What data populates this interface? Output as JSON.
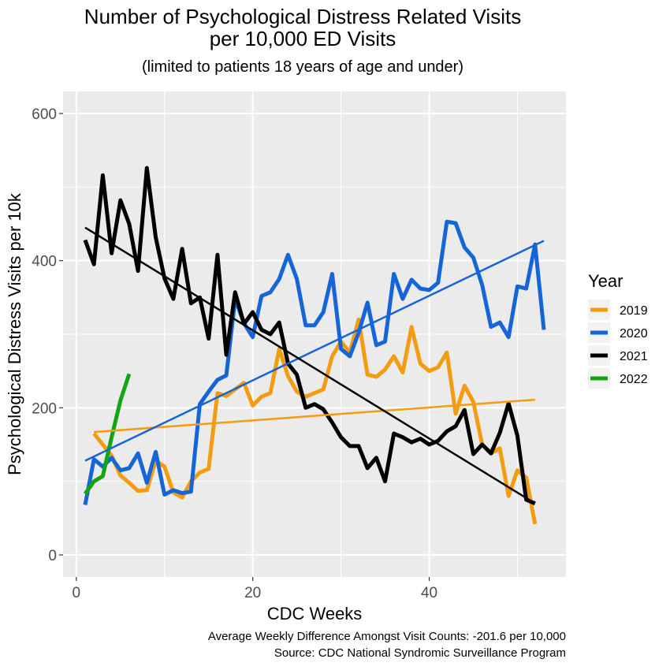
{
  "chart_data": {
    "type": "line",
    "title_line1": "Number of Psychological Distress Related Visits",
    "title_line2": "per 10,000 ED Visits",
    "subtitle": "(limited to patients 18 years of age and under)",
    "xlabel": "CDC Weeks",
    "ylabel": "Psychological Distress Visits per 10k",
    "xlim": [
      -1.5,
      55.5
    ],
    "ylim": [
      -30,
      630
    ],
    "x_ticks": [
      0,
      20,
      40
    ],
    "x_tick_labels": [
      "0",
      "20",
      "40"
    ],
    "y_ticks": [
      0,
      200,
      400,
      600
    ],
    "y_tick_labels": [
      "0",
      "200",
      "400",
      "600"
    ],
    "grid": true,
    "legend_position": "right",
    "legend_title": "Year",
    "caption_line1": "Average Weekly Difference Amongst Visit Counts: -201.6 per 10,000",
    "caption_line2": "Source: CDC National Syndromic Surveillance Program",
    "series": [
      {
        "name": "2019",
        "color": "#f39c12",
        "x": [
          2,
          3,
          4,
          5,
          6,
          7,
          8,
          9,
          10,
          11,
          12,
          13,
          14,
          15,
          16,
          17,
          18,
          19,
          20,
          21,
          22,
          23,
          24,
          25,
          26,
          27,
          28,
          29,
          30,
          31,
          32,
          33,
          34,
          35,
          36,
          37,
          38,
          39,
          40,
          41,
          42,
          43,
          44,
          45,
          46,
          47,
          48,
          49,
          50,
          51,
          52
        ],
        "y": [
          165,
          150,
          135,
          108,
          98,
          87,
          88,
          128,
          120,
          85,
          78,
          100,
          112,
          117,
          220,
          216,
          225,
          234,
          203,
          215,
          220,
          280,
          243,
          222,
          215,
          220,
          225,
          270,
          290,
          275,
          320,
          245,
          242,
          252,
          270,
          248,
          310,
          260,
          250,
          255,
          275,
          192,
          230,
          208,
          150,
          138,
          145,
          80,
          115,
          105,
          42
        ],
        "trend": [
          167,
          211
        ]
      },
      {
        "name": "2020",
        "color": "#1565d8",
        "x": [
          1,
          2,
          3,
          4,
          5,
          6,
          7,
          8,
          9,
          10,
          11,
          12,
          13,
          14,
          15,
          16,
          17,
          18,
          19,
          20,
          21,
          22,
          23,
          24,
          25,
          26,
          27,
          28,
          29,
          30,
          31,
          32,
          33,
          34,
          35,
          36,
          37,
          38,
          39,
          40,
          41,
          42,
          43,
          44,
          45,
          46,
          47,
          48,
          49,
          50,
          51,
          52,
          53
        ],
        "y": [
          68,
          130,
          120,
          132,
          115,
          118,
          138,
          98,
          140,
          82,
          88,
          84,
          86,
          205,
          222,
          238,
          244,
          348,
          315,
          296,
          352,
          357,
          375,
          408,
          375,
          312,
          312,
          330,
          382,
          280,
          270,
          302,
          343,
          285,
          290,
          382,
          348,
          374,
          362,
          360,
          370,
          453,
          451,
          418,
          404,
          367,
          310,
          316,
          296,
          365,
          362,
          422,
          306
        ],
        "trend": [
          128,
          427
        ]
      },
      {
        "name": "2021",
        "color": "#000000",
        "x": [
          1,
          2,
          3,
          4,
          5,
          6,
          7,
          8,
          9,
          10,
          11,
          12,
          13,
          14,
          15,
          16,
          17,
          18,
          19,
          20,
          21,
          22,
          23,
          24,
          25,
          26,
          27,
          28,
          29,
          30,
          31,
          32,
          33,
          34,
          35,
          36,
          37,
          38,
          39,
          40,
          41,
          42,
          43,
          44,
          45,
          46,
          47,
          48,
          49,
          50,
          51,
          52
        ],
        "y": [
          428,
          395,
          516,
          410,
          482,
          450,
          386,
          526,
          432,
          376,
          348,
          416,
          342,
          350,
          294,
          408,
          272,
          357,
          314,
          330,
          306,
          300,
          316,
          260,
          245,
          200,
          205,
          198,
          180,
          160,
          148,
          148,
          118,
          132,
          100,
          165,
          160,
          153,
          158,
          150,
          155,
          168,
          175,
          197,
          137,
          150,
          138,
          166,
          206,
          162,
          75,
          70
        ],
        "trend": [
          445,
          70
        ]
      },
      {
        "name": "2022",
        "color": "#13a513",
        "x": [
          1,
          2,
          3,
          4,
          5,
          6
        ],
        "y": [
          83,
          100,
          107,
          160,
          210,
          246
        ],
        "trend": null
      }
    ]
  }
}
